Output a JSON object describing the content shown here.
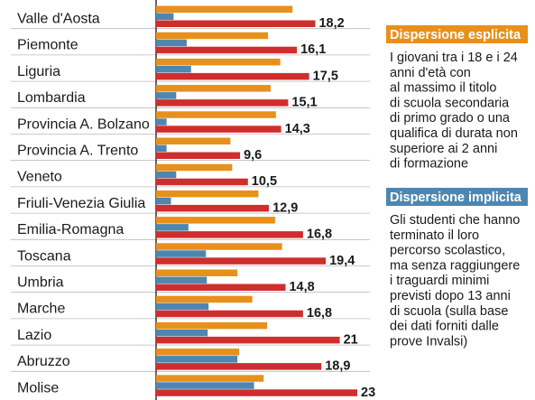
{
  "chart_data": {
    "type": "bar",
    "orientation": "horizontal",
    "categories": [
      "Valle d'Aosta",
      "Piemonte",
      "Liguria",
      "Lombardia",
      "Provincia A. Bolzano",
      "Provincia A. Trento",
      "Veneto",
      "Friuli-Venezia Giulia",
      "Emilia-Romagna",
      "Toscana",
      "Umbria",
      "Marche",
      "Lazio",
      "Abruzzo",
      "Molise"
    ],
    "series": [
      {
        "color": "#e8901c",
        "values": [
          15.6,
          12.8,
          14.2,
          13.1,
          13.7,
          8.5,
          8.7,
          11.7,
          13.6,
          14.4,
          9.3,
          11.0,
          12.7,
          9.5,
          12.3
        ]
      },
      {
        "color": "#4f86b0",
        "values": [
          2.0,
          3.5,
          4.0,
          2.3,
          1.2,
          1.2,
          2.3,
          1.7,
          3.7,
          5.7,
          5.8,
          6.0,
          5.9,
          9.3,
          11.2
        ]
      },
      {
        "color": "#cf2e2e",
        "values": [
          18.2,
          16.1,
          17.5,
          15.1,
          14.3,
          9.6,
          10.5,
          12.9,
          16.8,
          19.4,
          14.8,
          16.8,
          21,
          18.9,
          23
        ]
      }
    ],
    "value_labels": [
      "18,2",
      "16,1",
      "17,5",
      "15,1",
      "14,3",
      "9,6",
      "10,5",
      "12,9",
      "16,8",
      "19,4",
      "14,8",
      "16,8",
      "21",
      "18,9",
      "23"
    ],
    "xlim": [
      0,
      23
    ]
  },
  "legend": {
    "esplicita": {
      "title": "Dispersione esplicita",
      "color": "#e8901c",
      "lines": [
        "I giovani tra i 18 e i 24",
        "anni d'età con",
        "al massimo il titolo",
        "di scuola secondaria",
        "di primo grado o una",
        "qualifica di durata non",
        "superiore ai 2 anni",
        "di formazione"
      ]
    },
    "implicita": {
      "title": "Dispersione implicita",
      "color": "#4f86b0",
      "lines": [
        "Gli studenti che hanno",
        "terminato il loro",
        "percorso scolastico,",
        "ma senza raggiungere",
        "i traguardi minimi",
        "previsti dopo 13 anni",
        "di scuola (sulla base",
        "dei dati forniti dalle",
        "prove Invalsi)"
      ]
    }
  }
}
